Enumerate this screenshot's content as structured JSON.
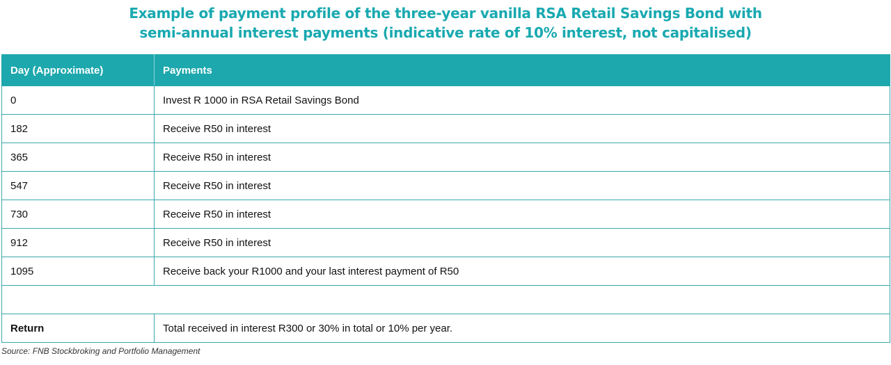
{
  "title": {
    "line1": "Example of payment profile of the three-year vanilla RSA Retail Savings Bond with",
    "line2": "semi-annual interest payments (indicative rate of 10% interest, not capitalised)"
  },
  "table": {
    "headers": [
      "Day (Approximate)",
      "Payments"
    ],
    "rows": [
      [
        "0",
        "Invest R 1000 in RSA Retail Savings Bond"
      ],
      [
        "182",
        "Receive R50 in interest"
      ],
      [
        "365",
        "Receive R50 in interest"
      ],
      [
        "547",
        "Receive R50 in interest"
      ],
      [
        "730",
        "Receive R50 in interest"
      ],
      [
        "912",
        "Receive R50 in interest"
      ],
      [
        "1095",
        "Receive back your R1000 and your last interest payment of R50"
      ],
      [
        "",
        ""
      ],
      [
        "Return",
        "Total received in interest R300 or 30% in total or 10% per year."
      ]
    ]
  },
  "source": "Source: FNB Stockbroking and Portfolio Management",
  "colors": {
    "accent": "#1da8ad",
    "title": "#19a9b0"
  }
}
